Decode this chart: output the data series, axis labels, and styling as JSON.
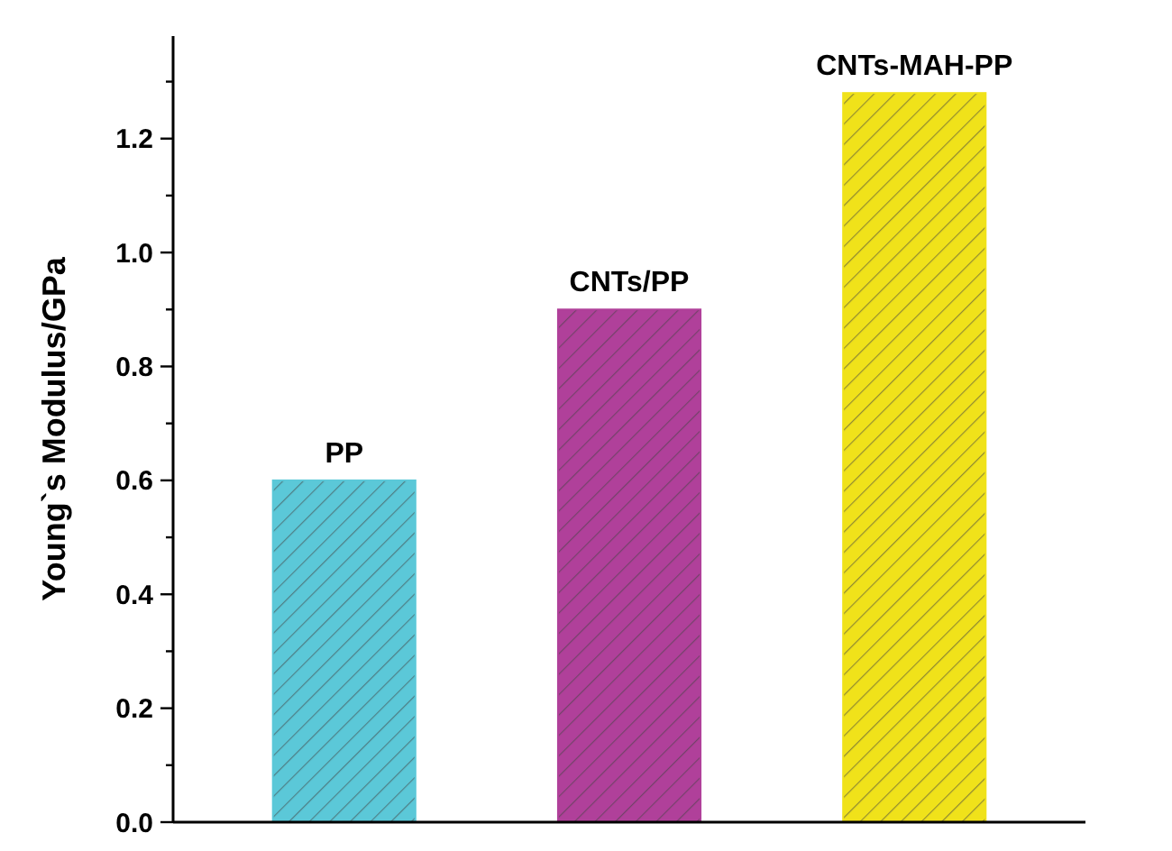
{
  "chart_data": {
    "type": "bar",
    "ylabel": "Young`s Modulus/GPa",
    "categories": [
      "PP",
      "CNTs/PP",
      "CNTs-MAH-PP"
    ],
    "values": [
      0.6,
      0.9,
      1.28
    ],
    "colors": [
      "#5bc8d8",
      "#b0409a",
      "#f0e21a"
    ],
    "ylim": [
      0,
      1.38
    ],
    "yticks": [
      {
        "value": 0,
        "label": "0.0"
      },
      {
        "value": 0.1,
        "label": null
      },
      {
        "value": 0.2,
        "label": "0.2"
      },
      {
        "value": 0.3,
        "label": null
      },
      {
        "value": 0.4,
        "label": "0.4"
      },
      {
        "value": 0.5,
        "label": null
      },
      {
        "value": 0.6,
        "label": "0.6"
      },
      {
        "value": 0.7,
        "label": null
      },
      {
        "value": 0.8,
        "label": "0.8"
      },
      {
        "value": 0.9,
        "label": null
      },
      {
        "value": 1.0,
        "label": "1.0"
      },
      {
        "value": 1.1,
        "label": null
      },
      {
        "value": 1.2,
        "label": "1.2"
      },
      {
        "value": 1.3,
        "label": null
      }
    ],
    "tick_labels": "y",
    "grid": false
  }
}
